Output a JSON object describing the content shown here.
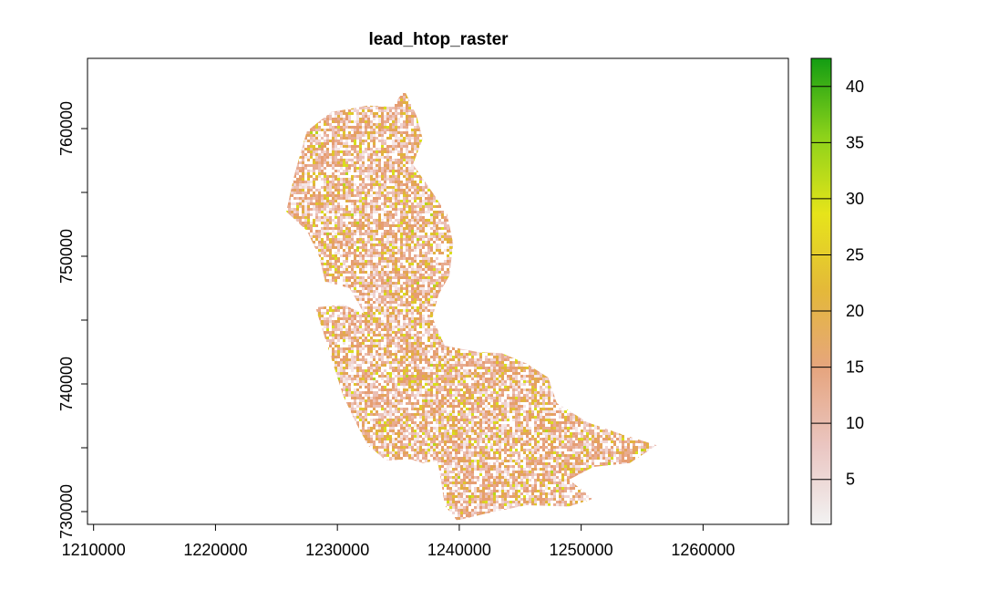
{
  "chart_data": {
    "type": "heatmap",
    "title": "lead_htop_raster",
    "xlabel": "",
    "ylabel": "",
    "xlim": [
      1209500,
      1267000
    ],
    "ylim": [
      729000,
      765500
    ],
    "x_ticks": [
      1210000,
      1220000,
      1230000,
      1240000,
      1250000,
      1260000
    ],
    "x_tick_labels": [
      "1210000",
      "1220000",
      "1230000",
      "1240000",
      "1250000",
      "1260000"
    ],
    "y_ticks": [
      730000,
      740000,
      750000,
      760000
    ],
    "y_tick_labels": [
      "730000",
      "740000",
      "750000",
      "760000"
    ],
    "legend": {
      "placement": "right",
      "range": [
        1,
        42.5
      ],
      "ticks": [
        5,
        10,
        15,
        20,
        25,
        30,
        35,
        40
      ],
      "tick_labels": [
        "5",
        "10",
        "15",
        "20",
        "25",
        "30",
        "35",
        "40"
      ],
      "color_stops": [
        "#f2f2f2",
        "#eac6c2",
        "#e6a57f",
        "#e4b83a",
        "#e6e41a",
        "#8cd21a",
        "#139d13"
      ]
    },
    "region_outline": [
      [
        1225800,
        753500
      ],
      [
        1226500,
        756500
      ],
      [
        1227500,
        759800
      ],
      [
        1229500,
        761300
      ],
      [
        1232500,
        761800
      ],
      [
        1234500,
        761700
      ],
      [
        1235500,
        763000
      ],
      [
        1236500,
        761000
      ],
      [
        1237000,
        759200
      ],
      [
        1236200,
        757200
      ],
      [
        1237800,
        755000
      ],
      [
        1239000,
        753300
      ],
      [
        1239500,
        751000
      ],
      [
        1239200,
        748500
      ],
      [
        1238300,
        747000
      ],
      [
        1237800,
        745200
      ],
      [
        1238800,
        743000
      ],
      [
        1241500,
        742500
      ],
      [
        1243500,
        742400
      ],
      [
        1245500,
        741600
      ],
      [
        1247300,
        740500
      ],
      [
        1248000,
        738500
      ],
      [
        1250500,
        737000
      ],
      [
        1253500,
        736000
      ],
      [
        1256200,
        735200
      ],
      [
        1254000,
        733800
      ],
      [
        1251000,
        733500
      ],
      [
        1249000,
        732500
      ],
      [
        1251000,
        731000
      ],
      [
        1249000,
        730400
      ],
      [
        1245500,
        730500
      ],
      [
        1242000,
        729800
      ],
      [
        1239800,
        729300
      ],
      [
        1238800,
        730500
      ],
      [
        1238500,
        732500
      ],
      [
        1238200,
        734000
      ],
      [
        1237000,
        733800
      ],
      [
        1236000,
        734100
      ],
      [
        1234000,
        734000
      ],
      [
        1232500,
        735200
      ],
      [
        1231500,
        737000
      ],
      [
        1230500,
        739000
      ],
      [
        1229500,
        742000
      ],
      [
        1228200,
        746000
      ],
      [
        1230500,
        746200
      ],
      [
        1232200,
        745500
      ],
      [
        1231000,
        747500
      ],
      [
        1229000,
        748000
      ],
      [
        1228500,
        750000
      ],
      [
        1227500,
        752000
      ]
    ]
  }
}
